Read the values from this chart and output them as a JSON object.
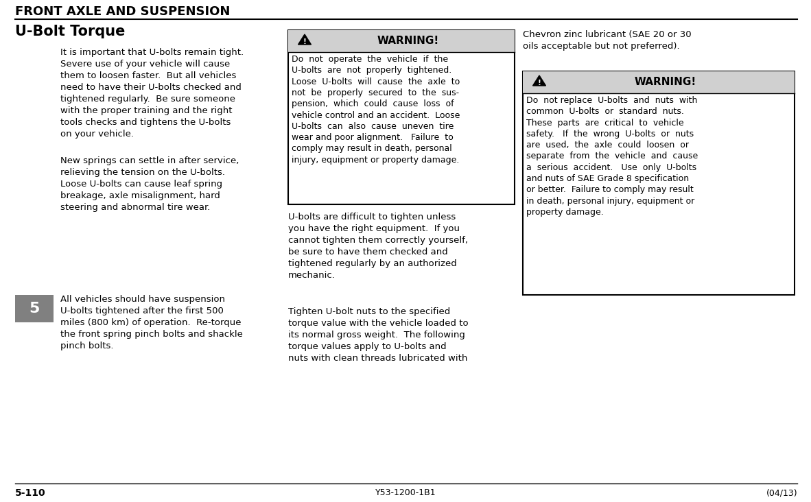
{
  "bg_color": "#ffffff",
  "header_text": "FRONT AXLE AND SUSPENSION",
  "title": "U-Bolt Torque",
  "col1_paragraphs": [
    "It is important that U-bolts remain tight.\nSevere use of your vehicle will cause\nthem to loosen faster.  But all vehicles\nneed to have their U-bolts checked and\ntightened regularly.  Be sure someone\nwith the proper training and the right\ntools checks and tightens the U-bolts\non your vehicle.",
    "New springs can settle in after service,\nrelieving the tension on the U-bolts.\nLoose U-bolts can cause leaf spring\nbreakage, axle misalignment, hard\nsteering and abnormal tire wear.",
    "All vehicles should have suspension\nU-bolts tightened after the first 500\nmiles (800 km) of operation.  Re-torque\nthe front spring pinch bolts and shackle\npinch bolts."
  ],
  "col1_tab_label": "5",
  "col2_warning1_title": "WARNING!",
  "col2_warning1_body": "Do  not  operate  the  vehicle  if  the\nU-bolts  are  not  properly  tightened.\nLoose  U-bolts  will  cause  the  axle  to\nnot  be  properly  secured  to  the  sus-\npension,  which  could  cause  loss  of\nvehicle control and an accident.  Loose\nU-bolts  can  also  cause  uneven  tire\nwear and poor alignment.   Failure  to\ncomply may result in death, personal\ninjury, equipment or property damage.",
  "col2_para1": "U-bolts are difficult to tighten unless\nyou have the right equipment.  If you\ncannot tighten them correctly yourself,\nbe sure to have them checked and\ntightened regularly by an authorized\nmechanic.",
  "col2_para2": "Tighten U-bolt nuts to the specified\ntorque value with the vehicle loaded to\nits normal gross weight.  The following\ntorque values apply to U-bolts and\nnuts with clean threads lubricated with",
  "col3_para1": "Chevron zinc lubricant (SAE 20 or 30\noils acceptable but not preferred).",
  "col3_warning2_title": "WARNING!",
  "col3_warning2_body": "Do  not replace  U-bolts  and  nuts  with\ncommon  U-bolts  or  standard  nuts.\nThese  parts  are  critical  to  vehicle\nsafety.   If  the  wrong  U-bolts  or  nuts\nare  used,  the  axle  could  loosen  or\nseparate  from  the  vehicle  and  cause\na  serious  accident.   Use  only  U-bolts\nand nuts of SAE Grade 8 specification\nor better.  Failure to comply may result\nin death, personal injury, equipment or\nproperty damage.",
  "footer_left": "5-110",
  "footer_center": "Y53-1200-1B1",
  "footer_right": "(04/13)",
  "warning_header_bg": "#d0d0d0",
  "tab_bg": "#808080",
  "tab_fg": "#ffffff"
}
